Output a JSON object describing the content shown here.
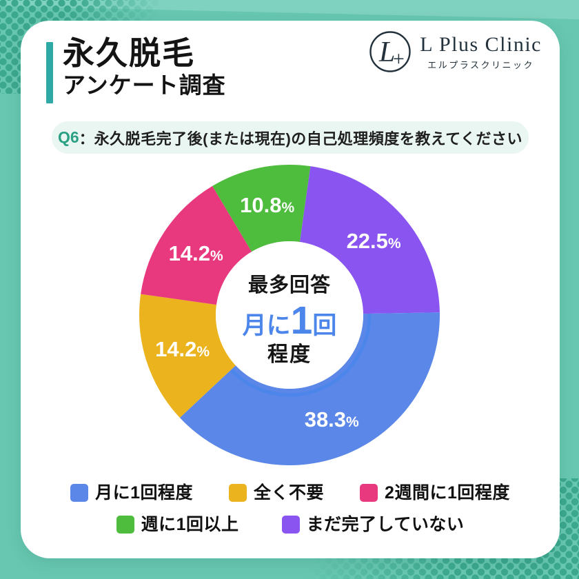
{
  "page": {
    "colors": {
      "background": "#67C7B0",
      "dots": "#3CA88E",
      "band": "#7FD2BF"
    }
  },
  "header": {
    "title": "永久脱毛",
    "subtitle": "アンケート調査",
    "accent_color": "#2FA9A6"
  },
  "logo": {
    "monogram": "L",
    "plus": "+",
    "name": "L Plus Clinic",
    "name_kana": "エルプラスクリニック"
  },
  "question": {
    "number": "Q6",
    "separator": "：",
    "text": "永久脱毛完了後(または現在)の自己処理頻度を教えてください",
    "number_color": "#2BA184",
    "pill_bg": "#EAF6F2"
  },
  "chart_data": {
    "type": "pie",
    "subtype": "donut",
    "title": "永久脱毛完了後(または現在)の自己処理頻度",
    "start_angle_deg": 8,
    "direction": "clockwise",
    "unit": "%",
    "segments": [
      {
        "label": "まだ完了していない",
        "value": 22.5,
        "color": "#8A54F0"
      },
      {
        "label": "月に1回程度",
        "value": 38.3,
        "color": "#5A87E8"
      },
      {
        "label": "全く不要",
        "value": 14.2,
        "color": "#EBB31E"
      },
      {
        "label": "2週間に1回程度",
        "value": 14.2,
        "color": "#E9397E"
      },
      {
        "label": "週に1回以上",
        "value": 10.8,
        "color": "#4EBC3C"
      }
    ],
    "center_label": {
      "top": "最多回答",
      "main_prefix": "月に",
      "main_number": "1",
      "main_suffix": "回",
      "bottom": "程度",
      "highlight_color": "#4C86EA"
    },
    "accent_arc": {
      "follows_segment": "月に1回程度",
      "color": "#4C86EA"
    },
    "legend_position": "bottom"
  },
  "legend": {
    "rows": [
      [
        {
          "label": "月に1回程度",
          "color": "#5A87E8"
        },
        {
          "label": "全く不要",
          "color": "#EBB31E"
        },
        {
          "label": "2週間に1回程度",
          "color": "#E9397E"
        }
      ],
      [
        {
          "label": "週に1回以上",
          "color": "#4EBC3C"
        },
        {
          "label": "まだ完了していない",
          "color": "#8A54F0"
        }
      ]
    ]
  }
}
